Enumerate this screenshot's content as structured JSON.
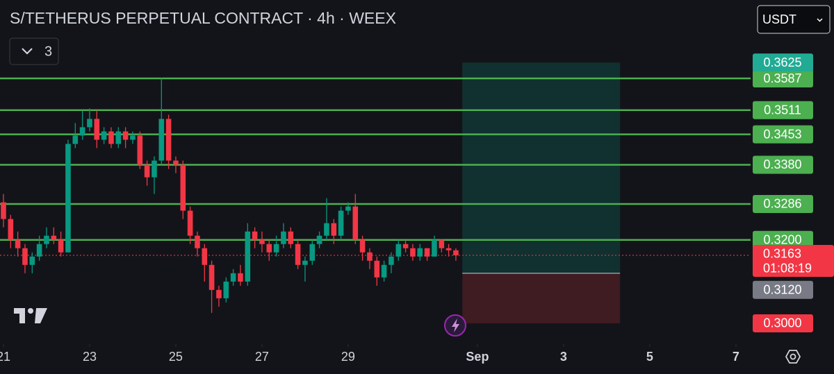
{
  "chart_data": {
    "type": "candlestick",
    "title": "S/TETHERUS PERPETUAL CONTRACT · 4h · WEEX",
    "currency": "USDT",
    "indicator_count": 3,
    "up_color": "#089981",
    "down_color": "#f23645",
    "level_color": "#4caf50",
    "x": [
      21,
      21.167,
      21.333,
      21.5,
      21.667,
      21.833,
      22,
      22.167,
      22.333,
      22.5,
      22.667,
      22.833,
      23,
      23.167,
      23.333,
      23.5,
      23.667,
      23.833,
      24,
      24.167,
      24.333,
      24.5,
      24.667,
      24.833,
      25,
      25.167,
      25.333,
      25.5,
      25.667,
      25.833,
      26,
      26.167,
      26.333,
      26.5,
      26.667,
      26.833,
      27,
      27.167,
      27.333,
      27.5,
      27.667,
      27.833,
      28,
      28.167,
      28.333,
      28.5,
      28.667,
      28.833,
      29,
      29.167,
      29.333,
      29.5,
      29.667,
      29.833,
      30,
      30.167,
      30.333,
      30.5,
      30.667,
      30.833,
      31,
      31.167,
      31.333,
      31.5
    ],
    "open": [
      0.329,
      0.325,
      0.32,
      0.318,
      0.314,
      0.316,
      0.319,
      0.321,
      0.32,
      0.317,
      0.343,
      0.345,
      0.347,
      0.349,
      0.344,
      0.346,
      0.343,
      0.346,
      0.344,
      0.345,
      0.338,
      0.335,
      0.339,
      0.349,
      0.339,
      0.338,
      0.327,
      0.321,
      0.318,
      0.314,
      0.308,
      0.306,
      0.31,
      0.312,
      0.31,
      0.322,
      0.32,
      0.319,
      0.317,
      0.319,
      0.322,
      0.319,
      0.314,
      0.315,
      0.319,
      0.321,
      0.324,
      0.321,
      0.327,
      0.328,
      0.32,
      0.317,
      0.315,
      0.311,
      0.314,
      0.316,
      0.319,
      0.318,
      0.316,
      0.318,
      0.316,
      0.32,
      0.318,
      0.3175
    ],
    "high": [
      0.331,
      0.326,
      0.322,
      0.319,
      0.317,
      0.321,
      0.323,
      0.323,
      0.322,
      0.344,
      0.348,
      0.351,
      0.3515,
      0.351,
      0.347,
      0.347,
      0.347,
      0.347,
      0.346,
      0.346,
      0.339,
      0.34,
      0.3588,
      0.35,
      0.34,
      0.339,
      0.328,
      0.322,
      0.319,
      0.315,
      0.309,
      0.311,
      0.313,
      0.314,
      0.324,
      0.323,
      0.322,
      0.32,
      0.321,
      0.324,
      0.323,
      0.32,
      0.316,
      0.32,
      0.322,
      0.33,
      0.325,
      0.328,
      0.329,
      0.331,
      0.321,
      0.318,
      0.316,
      0.315,
      0.317,
      0.32,
      0.32,
      0.319,
      0.319,
      0.318,
      0.321,
      0.32,
      0.319,
      0.318
    ],
    "low": [
      0.323,
      0.318,
      0.316,
      0.312,
      0.312,
      0.315,
      0.318,
      0.319,
      0.316,
      0.317,
      0.342,
      0.344,
      0.346,
      0.342,
      0.343,
      0.342,
      0.342,
      0.342,
      0.343,
      0.337,
      0.333,
      0.331,
      0.338,
      0.337,
      0.336,
      0.325,
      0.319,
      0.316,
      0.31,
      0.3025,
      0.304,
      0.305,
      0.309,
      0.309,
      0.309,
      0.318,
      0.317,
      0.315,
      0.316,
      0.318,
      0.318,
      0.313,
      0.31,
      0.314,
      0.318,
      0.32,
      0.319,
      0.32,
      0.326,
      0.319,
      0.315,
      0.313,
      0.309,
      0.31,
      0.312,
      0.315,
      0.317,
      0.315,
      0.315,
      0.315,
      0.316,
      0.317,
      0.316,
      0.315
    ],
    "close": [
      0.325,
      0.32,
      0.318,
      0.314,
      0.316,
      0.319,
      0.321,
      0.32,
      0.317,
      0.343,
      0.345,
      0.347,
      0.349,
      0.344,
      0.346,
      0.343,
      0.346,
      0.344,
      0.345,
      0.338,
      0.335,
      0.339,
      0.349,
      0.339,
      0.338,
      0.327,
      0.321,
      0.318,
      0.314,
      0.308,
      0.306,
      0.31,
      0.312,
      0.31,
      0.322,
      0.32,
      0.319,
      0.317,
      0.319,
      0.322,
      0.319,
      0.314,
      0.315,
      0.319,
      0.321,
      0.324,
      0.321,
      0.327,
      0.328,
      0.32,
      0.317,
      0.315,
      0.311,
      0.314,
      0.316,
      0.319,
      0.318,
      0.316,
      0.318,
      0.316,
      0.32,
      0.318,
      0.3175,
      0.3163
    ],
    "xlim": [
      20.92,
      38.34
    ],
    "ylim": [
      0.295,
      0.3775
    ],
    "xticks": [
      21,
      23,
      25,
      27,
      29,
      {
        "value": 32,
        "label": "Sep"
      },
      {
        "value": 34,
        "label": "3"
      },
      {
        "value": 36,
        "label": "5"
      },
      {
        "value": 38,
        "label": "7"
      }
    ],
    "levels": [
      0.3587,
      0.3511,
      0.3453,
      {
        "value": 0.338,
        "label": "0.3380"
      },
      0.3286,
      {
        "value": 0.32,
        "label": "0.3200"
      }
    ],
    "current_price": 0.3163,
    "countdown": "01:08:19",
    "position": {
      "x": [
        31.65,
        35.31
      ],
      "target": 0.3625,
      "entry": {
        "value": 0.312,
        "label": "0.3120"
      },
      "stop": {
        "value": 0.3,
        "label": "0.3000"
      }
    }
  }
}
